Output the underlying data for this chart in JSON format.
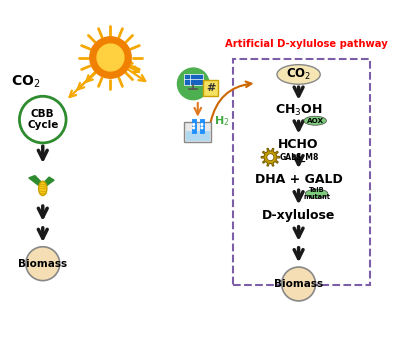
{
  "title": "Artificial D-xylulose pathway",
  "title_color": "#FF0000",
  "background_color": "#FFFFFF",
  "left_pathway": {
    "co2_label": "CO$_2$",
    "cbb_label": "CBB\nCycle",
    "biomass_label": "Biomass"
  },
  "right_pathway": {
    "box_color": "#7B5EA7",
    "co2_label": "CO$_2$",
    "steps": [
      "CH$_3$OH",
      "HCHO",
      "DHA + GALD",
      "D-xylulose"
    ],
    "enzymes": [
      "AOX",
      "GALS_M8",
      "TalB\nmutant"
    ],
    "biomass_label": "Biomass"
  },
  "h2_label": "H$_2$",
  "arrow_colors": {
    "main": "#1a1a1a",
    "orange": "#E07820",
    "green": "#2E8B2E",
    "yellow_sun": "#F5A800",
    "h2_curve": "#CC4400"
  },
  "colors": {
    "sun_outer": "#F5A800",
    "sun_center": "#F08000",
    "solar_bg": "#4CAF50",
    "solar_panel": "#1565C0",
    "electrode_blue": "#1E90FF",
    "cbb_circle": "#2E8B2E",
    "corn_yellow": "#F5C518",
    "corn_leaf": "#2E8B2E",
    "biomass_fill": "#F5DEB3",
    "co2_fill": "#F5E6B4",
    "aox_fill": "#7CCC7C",
    "gals_fill": "#D4A800",
    "talb_fill": "#7CCC7C"
  }
}
